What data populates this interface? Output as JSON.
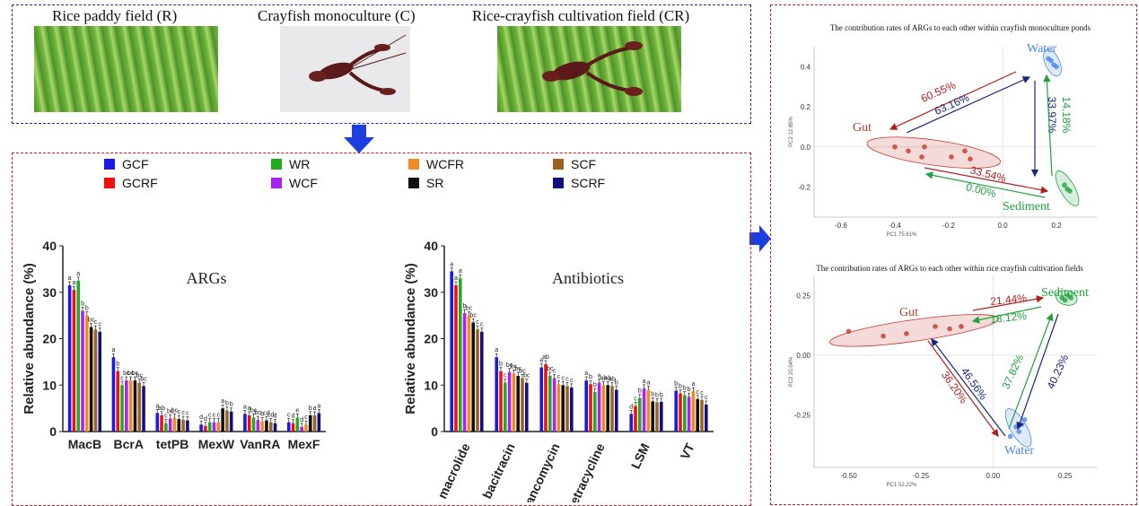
{
  "top_panel": {
    "labels": [
      "Rice paddy field (R)",
      "Crayfish monoculture (C)",
      "Rice-crayfish cultivation field (CR)"
    ]
  },
  "legend": [
    {
      "name": "GCF",
      "color": "#1a1ae6"
    },
    {
      "name": "GCRF",
      "color": "#ee1111"
    },
    {
      "name": "WR",
      "color": "#22aa22"
    },
    {
      "name": "WCF",
      "color": "#aa22ee"
    },
    {
      "name": "WCFR",
      "color": "#f5891f"
    },
    {
      "name": "SR",
      "color": "#111111"
    },
    {
      "name": "SCF",
      "color": "#9a6322"
    },
    {
      "name": "SCRF",
      "color": "#101080"
    }
  ],
  "chart_data": [
    {
      "type": "bar",
      "title": "ARGs",
      "ylabel": "Relative abundance (%)",
      "ylim": [
        0,
        40
      ],
      "yticks": [
        "0",
        "10",
        "20",
        "30",
        "40"
      ],
      "categories": [
        "MacB",
        "BcrA",
        "tetPB",
        "MexW",
        "VanRA",
        "MexF"
      ],
      "series": [
        {
          "name": "GCF",
          "values": [
            31.5,
            16,
            4,
            1.5,
            3.8,
            2
          ]
        },
        {
          "name": "GCRF",
          "values": [
            30.5,
            13,
            3.5,
            1.2,
            3.5,
            1.8
          ]
        },
        {
          "name": "WR",
          "values": [
            32.5,
            10,
            1.8,
            2,
            3,
            3
          ]
        },
        {
          "name": "WCF",
          "values": [
            26,
            11,
            2.8,
            2,
            2.5,
            1
          ]
        },
        {
          "name": "WCFR",
          "values": [
            25,
            11,
            3,
            2,
            2.2,
            1.5
          ]
        },
        {
          "name": "SR",
          "values": [
            22.5,
            11,
            2.7,
            5,
            2.4,
            3.5
          ]
        },
        {
          "name": "SCF",
          "values": [
            22,
            10.5,
            2.5,
            4.5,
            2,
            3.5
          ]
        },
        {
          "name": "SCRF",
          "values": [
            21.5,
            9.8,
            2.4,
            4.3,
            1.8,
            4
          ]
        }
      ],
      "letters": [
        [
          "a",
          "a",
          "a",
          "b",
          "b",
          "bc",
          "c",
          "c"
        ],
        [
          "a",
          "b",
          "c",
          "bc",
          "bc",
          "bc",
          "bc",
          "bc"
        ],
        [
          "a",
          "ab",
          "c",
          "bc",
          "bc",
          "c",
          "c",
          "c"
        ],
        [
          "d",
          "d",
          "c",
          "c",
          "c",
          "a",
          "b",
          "b"
        ],
        [
          "a",
          "a",
          "bc",
          "bc",
          "b",
          "cd",
          "cd",
          "d"
        ],
        [
          "c",
          "d",
          "e",
          "d",
          "c",
          "b",
          "a",
          "a"
        ]
      ]
    },
    {
      "type": "bar",
      "title": "Antibiotics",
      "ylabel": "Relative abundance (%)",
      "ylim": [
        0,
        40
      ],
      "yticks": [
        "0",
        "10",
        "20",
        "30",
        "40"
      ],
      "categories": [
        "macrolide",
        "bacitracin",
        "vancomycin",
        "tetracycline",
        "LSM",
        "VT"
      ],
      "series": [
        {
          "name": "GCF",
          "values": [
            34.5,
            16,
            13.8,
            11,
            3.8,
            8.8
          ]
        },
        {
          "name": "GCRF",
          "values": [
            31.5,
            13,
            14.5,
            10.2,
            5.5,
            8.2
          ]
        },
        {
          "name": "WR",
          "values": [
            33,
            10.5,
            12,
            8.5,
            7.2,
            7.8
          ]
        },
        {
          "name": "WCF",
          "values": [
            25.5,
            12.8,
            11.5,
            10.5,
            9.3,
            7.5
          ]
        },
        {
          "name": "WCFR",
          "values": [
            25,
            12.5,
            10.2,
            10,
            9,
            8.7
          ]
        },
        {
          "name": "SR",
          "values": [
            23.5,
            12,
            10,
            10,
            6.5,
            7
          ]
        },
        {
          "name": "SCF",
          "values": [
            22,
            11.5,
            9.8,
            9.8,
            6.3,
            6.8
          ]
        },
        {
          "name": "SCRF",
          "values": [
            21.5,
            10.5,
            9.5,
            9,
            6.4,
            5.8
          ]
        }
      ],
      "letters": [
        [
          "a",
          "a",
          "a",
          "b",
          "bc",
          "bc",
          "c",
          "c"
        ],
        [
          "a",
          "b",
          "c",
          "bc",
          "bc",
          "bc",
          "bc",
          "bc"
        ],
        [
          "a",
          "ab",
          "bc",
          "c",
          "c",
          "c",
          "c",
          "c"
        ],
        [
          "a",
          "b",
          "b",
          "a",
          "ab",
          "ab",
          "ab",
          "b"
        ],
        [
          "d",
          "c",
          "b",
          "a",
          "a",
          "b",
          "b",
          "b"
        ],
        [
          "b",
          "b",
          "b",
          "b",
          "a",
          "c",
          "c",
          "c"
        ]
      ]
    },
    {
      "type": "scatter",
      "title": "The contribution rates of ARGs to each other within crayfish monoculture ponds",
      "xlabel": "PC1 75.61%",
      "ylabel": "PC2 12.85%",
      "xlim": [
        -0.7,
        0.35
      ],
      "ylim": [
        -0.35,
        0.5
      ],
      "xticks": [
        "-0.6",
        "-0.4",
        "-0.2",
        "0.0",
        "0.2"
      ],
      "yticks": [
        "0.4",
        "0.2",
        "0.0",
        "-0.2"
      ],
      "groups": [
        {
          "name": "Gut",
          "color": "#c0392b",
          "points": [
            [
              -0.4,
              0.0
            ],
            [
              -0.35,
              -0.02
            ],
            [
              -0.3,
              -0.05
            ],
            [
              -0.29,
              0.0
            ],
            [
              -0.19,
              -0.05
            ],
            [
              -0.14,
              -0.02
            ],
            [
              -0.12,
              -0.06
            ]
          ]
        },
        {
          "name": "Water",
          "color": "#4a86e8",
          "points": [
            [
              0.17,
              0.44
            ],
            [
              0.18,
              0.43
            ],
            [
              0.19,
              0.41
            ],
            [
              0.2,
              0.4
            ]
          ]
        },
        {
          "name": "Sediment",
          "color": "#1fa23b",
          "points": [
            [
              0.23,
              -0.19
            ],
            [
              0.24,
              -0.21
            ],
            [
              0.25,
              -0.22
            ]
          ]
        }
      ],
      "arrows": [
        {
          "label": "60.55%",
          "color": "#b02020"
        },
        {
          "label": "63.16%",
          "color": "#1a237e"
        },
        {
          "label": "33.97%",
          "color": "#1a237e"
        },
        {
          "label": "14.18%",
          "color": "#1fa23b"
        },
        {
          "label": "33.54%",
          "color": "#b02020"
        },
        {
          "label": "0.00%",
          "color": "#1fa23b"
        }
      ]
    },
    {
      "type": "scatter",
      "title": "The contribution rates of ARGs to each other within rice crayfish cultivation fields",
      "xlabel": "PC1 52.22%",
      "ylabel": "PC2 20.04%",
      "xlim": [
        -0.62,
        0.36
      ],
      "ylim": [
        -0.47,
        0.33
      ],
      "xticks": [
        "-0.50",
        "-0.25",
        "0.00",
        "0.25"
      ],
      "yticks": [
        "0.25",
        "0.00",
        "-0.25"
      ],
      "groups": [
        {
          "name": "Gut",
          "color": "#c0392b",
          "points": [
            [
              -0.5,
              0.1
            ],
            [
              -0.38,
              0.08
            ],
            [
              -0.3,
              0.09
            ],
            [
              -0.2,
              0.12
            ],
            [
              -0.15,
              0.11
            ],
            [
              -0.11,
              0.12
            ]
          ]
        },
        {
          "name": "Sediment",
          "color": "#1fa23b",
          "points": [
            [
              0.24,
              0.24
            ],
            [
              0.25,
              0.23
            ],
            [
              0.26,
              0.25
            ],
            [
              0.27,
              0.24
            ]
          ]
        },
        {
          "name": "Water",
          "color": "#4a86e8",
          "points": [
            [
              0.06,
              -0.34
            ],
            [
              0.08,
              -0.3
            ],
            [
              0.09,
              -0.32
            ],
            [
              0.1,
              -0.29
            ],
            [
              0.11,
              -0.27
            ]
          ]
        }
      ],
      "arrows": [
        {
          "label": "21.44%",
          "color": "#b02020"
        },
        {
          "label": "18.12%",
          "color": "#1fa23b"
        },
        {
          "label": "37.82%",
          "color": "#1fa23b"
        },
        {
          "label": "40.23%",
          "color": "#1a237e"
        },
        {
          "label": "36.20%",
          "color": "#b02020"
        },
        {
          "label": "46.56%",
          "color": "#1a237e"
        }
      ]
    }
  ]
}
